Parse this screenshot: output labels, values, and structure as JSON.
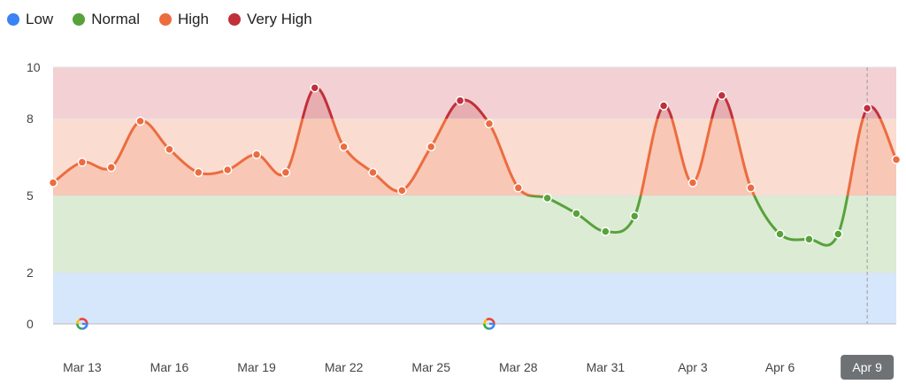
{
  "legend": [
    {
      "label": "Low",
      "color": "#3b82f6"
    },
    {
      "label": "Normal",
      "color": "#57a23a"
    },
    {
      "label": "High",
      "color": "#ec6c3f"
    },
    {
      "label": "Very High",
      "color": "#c0303a"
    }
  ],
  "chart_data": {
    "type": "line",
    "x": [
      "Mar 12",
      "Mar 13",
      "Mar 14",
      "Mar 15",
      "Mar 16",
      "Mar 17",
      "Mar 18",
      "Mar 19",
      "Mar 20",
      "Mar 21",
      "Mar 22",
      "Mar 23",
      "Mar 24",
      "Mar 25",
      "Mar 26",
      "Mar 27",
      "Mar 28",
      "Mar 29",
      "Mar 30",
      "Mar 31",
      "Apr 1",
      "Apr 2",
      "Apr 3",
      "Apr 4",
      "Apr 5",
      "Apr 6",
      "Apr 7",
      "Apr 8",
      "Apr 9",
      "Apr 10"
    ],
    "values": [
      5.5,
      6.3,
      6.1,
      7.9,
      6.8,
      5.9,
      6.0,
      6.6,
      5.9,
      9.2,
      6.9,
      5.9,
      5.2,
      6.9,
      8.7,
      7.8,
      5.3,
      4.9,
      4.3,
      3.6,
      4.2,
      8.5,
      5.5,
      8.9,
      5.3,
      3.5,
      3.3,
      3.5,
      8.4,
      6.4
    ],
    "yticks": [
      0,
      2,
      5,
      8,
      10
    ],
    "ylim": [
      0,
      10
    ],
    "xticks": [
      "Mar 13",
      "Mar 16",
      "Mar 19",
      "Mar 22",
      "Mar 25",
      "Mar 28",
      "Mar 31",
      "Apr 3",
      "Apr 6",
      "Apr 9"
    ],
    "selected_x": "Apr 9",
    "bands": [
      {
        "label": "Low",
        "from": 0,
        "to": 2,
        "color": "#d6e6fb"
      },
      {
        "label": "Normal",
        "from": 2,
        "to": 5,
        "color": "#dcebd4"
      },
      {
        "label": "High",
        "from": 5,
        "to": 8,
        "color": "#fbdcd0"
      },
      {
        "label": "Very High",
        "from": 8,
        "to": 10,
        "color": "#f3d0d3"
      }
    ],
    "annotations": [
      {
        "x": "Mar 13",
        "icon": "google-icon"
      },
      {
        "x": "Mar 27",
        "icon": "google-icon"
      }
    ],
    "grid": true
  }
}
